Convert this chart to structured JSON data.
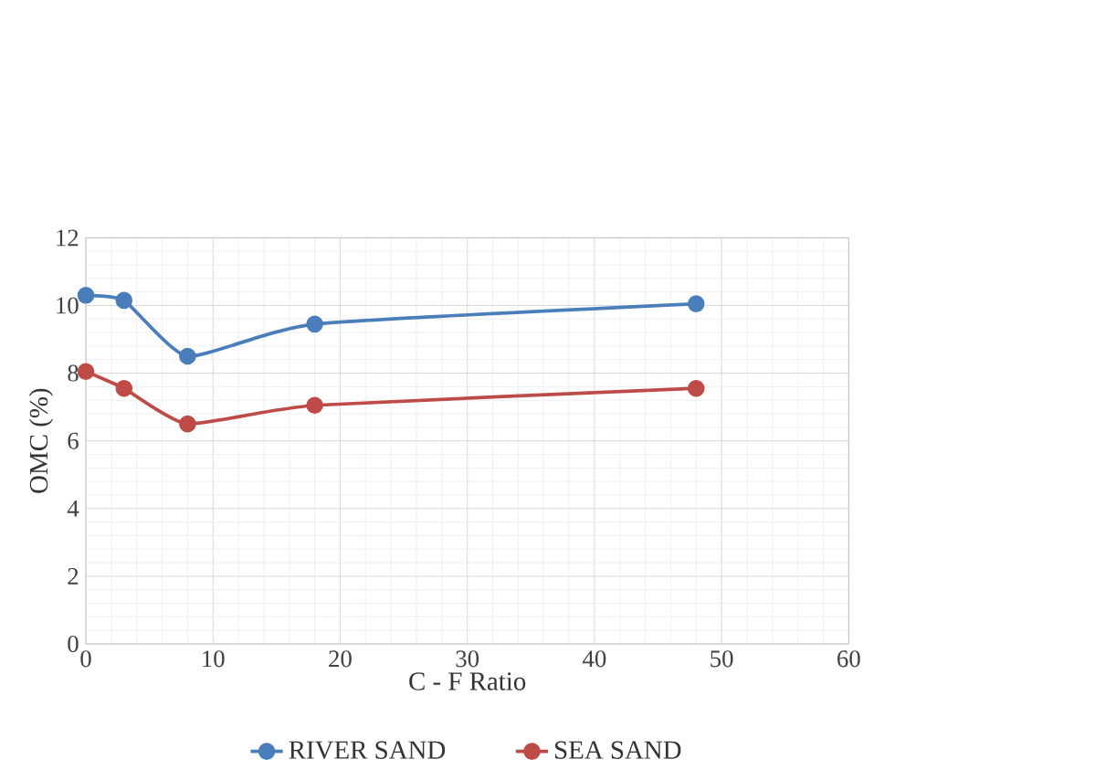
{
  "chart_data": {
    "type": "line",
    "xlabel": "C - F Ratio",
    "ylabel": "OMC (%)",
    "x": [
      0,
      3,
      8,
      18,
      48
    ],
    "series": [
      {
        "name": "RIVER SAND",
        "color": "#4a7ebb",
        "values": [
          10.3,
          10.15,
          8.5,
          9.45,
          10.05
        ]
      },
      {
        "name": "SEA SAND",
        "color": "#be4b48",
        "values": [
          8.05,
          7.55,
          6.5,
          7.05,
          7.55
        ]
      }
    ],
    "xlim": [
      0,
      60
    ],
    "ylim": [
      0,
      12
    ],
    "xticks": [
      0,
      10,
      20,
      30,
      40,
      50,
      60
    ],
    "yticks": [
      0,
      2,
      4,
      6,
      8,
      10,
      12
    ],
    "grid": true,
    "legend": "bottom",
    "marker": "circle",
    "line_style": "solid"
  }
}
